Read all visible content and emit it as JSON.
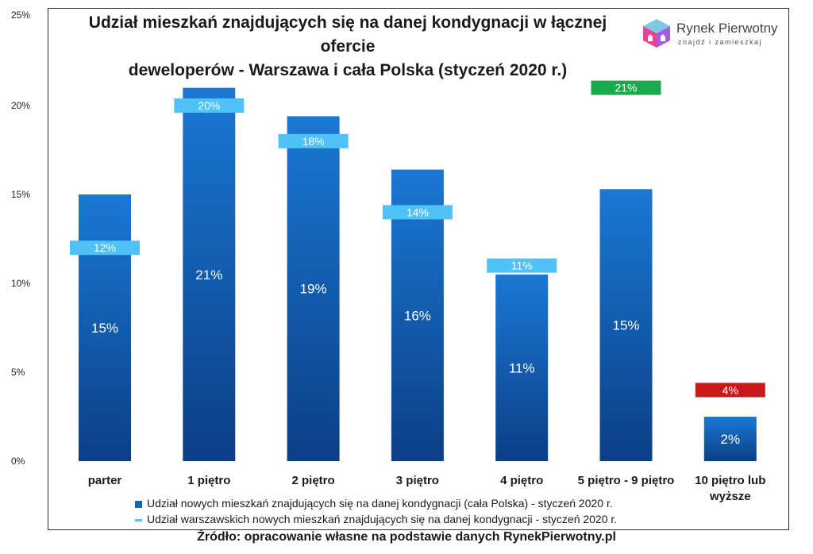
{
  "chart_data": {
    "type": "bar",
    "title_line1": "Udział mieszkań znajdujących się na danej kondygnacji w łącznej ofercie",
    "title_line2": "deweloperów - Warszawa i cała Polska (styczeń 2020 r.)",
    "ylim": [
      0,
      25
    ],
    "yticks": [
      "0%",
      "5%",
      "10%",
      "15%",
      "20%",
      "25%"
    ],
    "categories": [
      "parter",
      "1 piętro",
      "2 piętro",
      "3 piętro",
      "4 piętro",
      "5 piętro - 9 piętro",
      "10 piętro lub wyższe"
    ],
    "series": [
      {
        "name": "Udział nowych mieszkań znajdujących się na danej kondygnacji (cała Polska) - styczeń 2020 r.",
        "values": [
          15,
          21,
          19.4,
          16.4,
          10.5,
          15.3,
          2.5
        ],
        "labels": [
          "15%",
          "21%",
          "19%",
          "16%",
          "11%",
          "15%",
          "2%"
        ],
        "color": "#1464c0"
      },
      {
        "name": "Udział warszawskich nowych mieszkań znajdujących się na danej kondygnacji - styczeń 2020 r.",
        "values": [
          12,
          20,
          18,
          14,
          11,
          21,
          4
        ],
        "labels": [
          "12%",
          "20%",
          "18%",
          "14%",
          "11%",
          "21%",
          "4%"
        ],
        "color": "#4fc3f7",
        "highlight_colors": [
          "#4fc3f7",
          "#4fc3f7",
          "#4fc3f7",
          "#4fc3f7",
          "#4fc3f7",
          "#1aaa4b",
          "#c91a1a"
        ]
      }
    ]
  },
  "logo": {
    "name": "Rynek Pierwotny",
    "tagline": "znajdź i zamieszkaj"
  },
  "source": "Źródło: opracowanie własne na podstawie danych RynekPierwotny.pl"
}
